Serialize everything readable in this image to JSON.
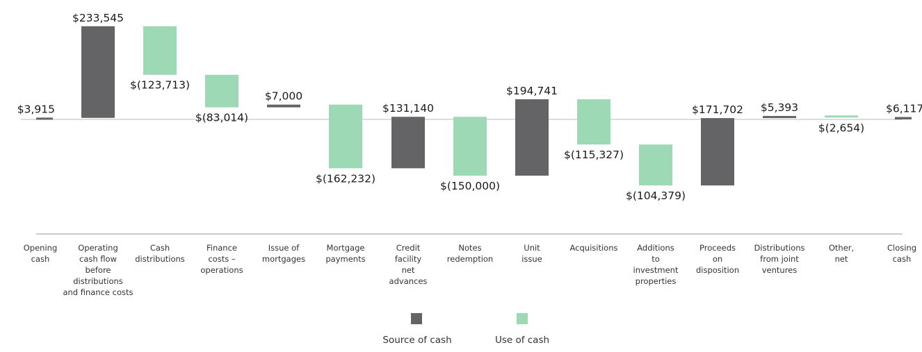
{
  "chart_data": {
    "type": "waterfall",
    "categories": [
      [
        "Opening",
        "cash"
      ],
      [
        "Operating",
        "cash flow",
        "before",
        "distributions",
        "and finance costs"
      ],
      [
        "Cash",
        "distributions"
      ],
      [
        "Finance",
        "costs –",
        "operations"
      ],
      [
        "Issue of",
        "mortgages"
      ],
      [
        "Mortgage",
        "payments"
      ],
      [
        "Credit",
        "facility",
        "net",
        "advances"
      ],
      [
        "Notes",
        "redemption"
      ],
      [
        "Unit",
        "issue"
      ],
      [
        "Acquisitions"
      ],
      [
        "Additions",
        "to",
        "investment",
        "properties"
      ],
      [
        "Proceeds",
        "on",
        "disposition"
      ],
      [
        "Distributions",
        "from joint",
        "ventures"
      ],
      [
        "Other,",
        "net"
      ],
      [
        "Closing",
        "cash"
      ]
    ],
    "values": [
      3915,
      233545,
      -123713,
      -83014,
      7000,
      -162232,
      131140,
      -150000,
      194741,
      -115327,
      -104379,
      171702,
      5393,
      -2654,
      6117
    ],
    "labels": [
      "$3,915",
      "$233,545",
      "$(123,713)",
      "$(83,014)",
      "$7,000",
      "$(162,232)",
      "$131,140",
      "$(150,000)",
      "$194,741",
      "$(115,327)",
      "$(104,379)",
      "$171,702",
      "$5,393",
      "$(2,654)",
      "$6,117"
    ],
    "kinds": [
      "total",
      "source",
      "use",
      "use",
      "source",
      "use",
      "source",
      "use",
      "source",
      "use",
      "use",
      "source",
      "source",
      "use",
      "total"
    ],
    "series": [
      {
        "name": "Source of cash",
        "color": "#646466"
      },
      {
        "name": "Use of cash",
        "color": "#9dd9b4"
      }
    ],
    "legend_position": "bottom",
    "grid": false
  }
}
